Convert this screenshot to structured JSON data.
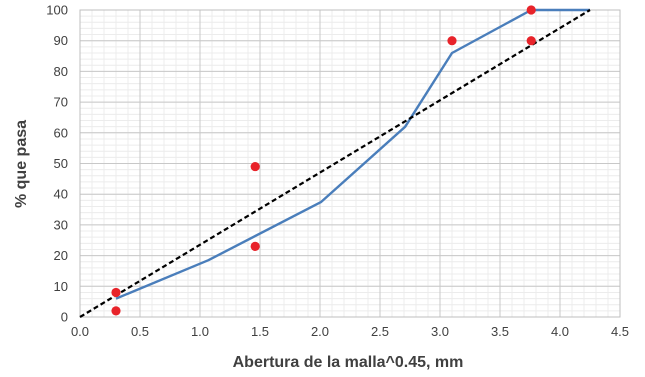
{
  "chart_data": {
    "type": "line",
    "xlabel": "Abertura de la malla^0.45, mm",
    "ylabel": "% que pasa",
    "xlim": [
      0.0,
      4.5
    ],
    "ylim": [
      0,
      100
    ],
    "x_ticks": [
      "0.0",
      "0.5",
      "1.0",
      "1.5",
      "2.0",
      "2.5",
      "3.0",
      "3.5",
      "4.0",
      "4.5"
    ],
    "y_ticks": [
      "0",
      "10",
      "20",
      "30",
      "40",
      "50",
      "60",
      "70",
      "80",
      "90",
      "100"
    ],
    "grid": true,
    "minor_grid": true,
    "legend": "none",
    "series": [
      {
        "kind": "line",
        "style": "solid",
        "color": "#4a7ebb",
        "points": [
          [
            0.3,
            6
          ],
          [
            1.07,
            18.5
          ],
          [
            2.01,
            37.5
          ],
          [
            2.71,
            62
          ],
          [
            3.1,
            86
          ],
          [
            3.76,
            100
          ],
          [
            4.25,
            100
          ]
        ]
      },
      {
        "kind": "line",
        "style": "dashed",
        "color": "#000000",
        "points": [
          [
            0.0,
            0
          ],
          [
            4.25,
            100
          ]
        ]
      },
      {
        "kind": "scatter",
        "color": "#e8232a",
        "points": [
          [
            0.3,
            8
          ],
          [
            0.3,
            2
          ],
          [
            1.46,
            49
          ],
          [
            1.46,
            23
          ],
          [
            3.1,
            90
          ],
          [
            3.76,
            100
          ],
          [
            3.76,
            90
          ]
        ]
      }
    ]
  }
}
